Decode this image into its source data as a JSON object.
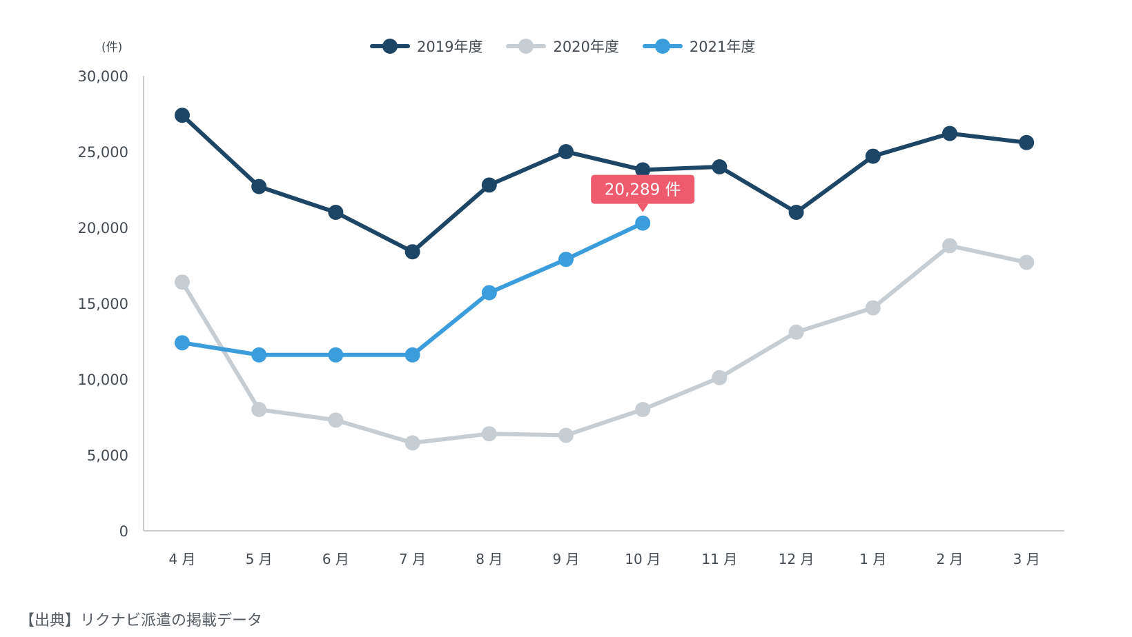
{
  "chart_data": {
    "type": "line",
    "unit_label": "(件)",
    "categories": [
      "4 月",
      "5 月",
      "6 月",
      "7 月",
      "8 月",
      "9 月",
      "10 月",
      "11 月",
      "12 月",
      "1 月",
      "2 月",
      "3 月"
    ],
    "series": [
      {
        "name": "2019年度",
        "color": "#1c4566",
        "values": [
          27400,
          22700,
          21000,
          18400,
          22800,
          25000,
          23800,
          24000,
          21000,
          24700,
          26200,
          25600
        ]
      },
      {
        "name": "2020年度",
        "color": "#c6ced3",
        "values": [
          16400,
          8000,
          7300,
          5800,
          6400,
          6300,
          8000,
          10100,
          13100,
          14700,
          18800,
          17700
        ]
      },
      {
        "name": "2021年度",
        "color": "#3b9ddb",
        "values": [
          12400,
          11600,
          11600,
          11600,
          15700,
          17900,
          20289,
          null,
          null,
          null,
          null,
          null
        ]
      }
    ],
    "ylim": [
      0,
      30000
    ],
    "yticks": [
      "0",
      "5,000",
      "10,000",
      "15,000",
      "20,000",
      "25,000",
      "30,000"
    ],
    "grid": false,
    "legend_position": "top-center",
    "annotation": {
      "text": "20,289 件",
      "series": "2021年度",
      "category_index": 6,
      "color": "#ee5b6c"
    }
  },
  "source_note": "【出典】リクナビ派遣の掲載データ"
}
